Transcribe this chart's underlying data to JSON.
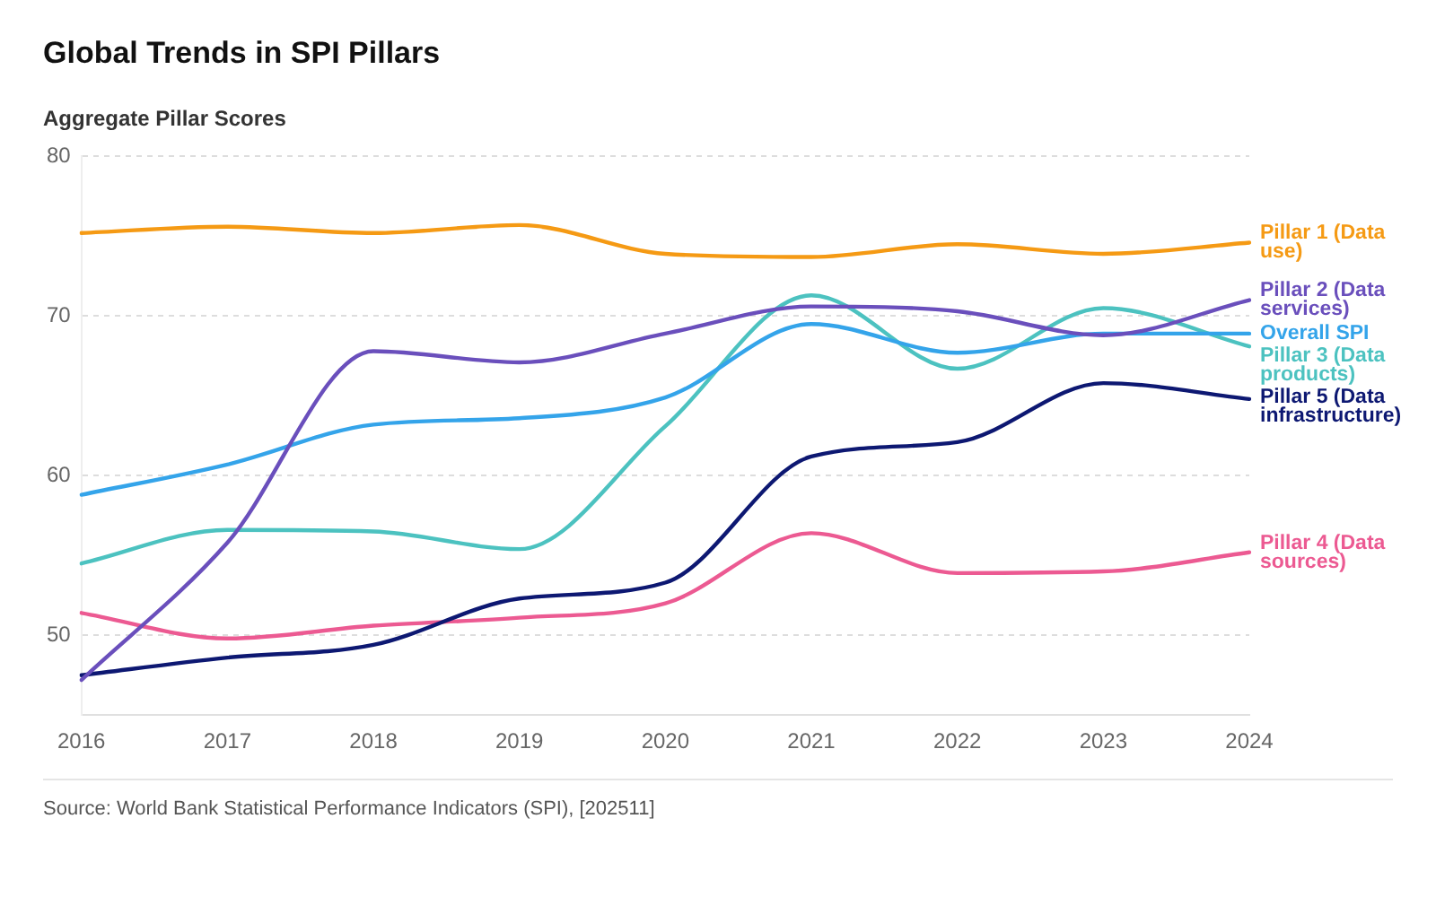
{
  "chart_data": {
    "type": "line",
    "title": "Global Trends in SPI Pillars",
    "ylabel": "Aggregate Pillar Scores",
    "categories": [
      "2016",
      "2017",
      "2018",
      "2019",
      "2020",
      "2021",
      "2022",
      "2023",
      "2024"
    ],
    "series": [
      {
        "name": "Pillar 1 (Data use)",
        "color": "#f59a14",
        "values": [
          75.2,
          75.6,
          75.2,
          75.7,
          73.9,
          73.7,
          74.5,
          73.9,
          74.6
        ]
      },
      {
        "name": "Pillar 2 (Data services)",
        "color": "#6a4fbc",
        "values": [
          47.2,
          55.8,
          67.8,
          67.1,
          68.9,
          70.6,
          70.3,
          68.8,
          71.0
        ]
      },
      {
        "name": "Overall SPI",
        "color": "#34a4ea",
        "values": [
          58.8,
          60.7,
          63.2,
          63.6,
          64.9,
          69.5,
          67.7,
          68.9,
          68.9
        ]
      },
      {
        "name": "Pillar 3 (Data products)",
        "color": "#4cc2c0",
        "values": [
          54.5,
          56.6,
          56.5,
          55.4,
          63.1,
          71.3,
          66.7,
          70.5,
          68.1
        ]
      },
      {
        "name": "Pillar 5 (Data infrastructure)",
        "color": "#0d1872",
        "values": [
          47.5,
          48.6,
          49.4,
          52.3,
          53.3,
          61.2,
          62.1,
          65.8,
          64.8
        ]
      },
      {
        "name": "Pillar 4 (Data sources)",
        "color": "#ec5a92",
        "values": [
          51.4,
          49.8,
          50.6,
          51.1,
          52.0,
          56.4,
          53.9,
          54.0,
          55.2
        ]
      }
    ],
    "ylim": [
      45,
      80
    ],
    "yticks": [
      50,
      60,
      70,
      80
    ],
    "grid": "y",
    "marker": "none",
    "line_style": "solid",
    "annotations": [
      "Source: World Bank Statistical Performance Indicators (SPI), [202511]"
    ]
  }
}
